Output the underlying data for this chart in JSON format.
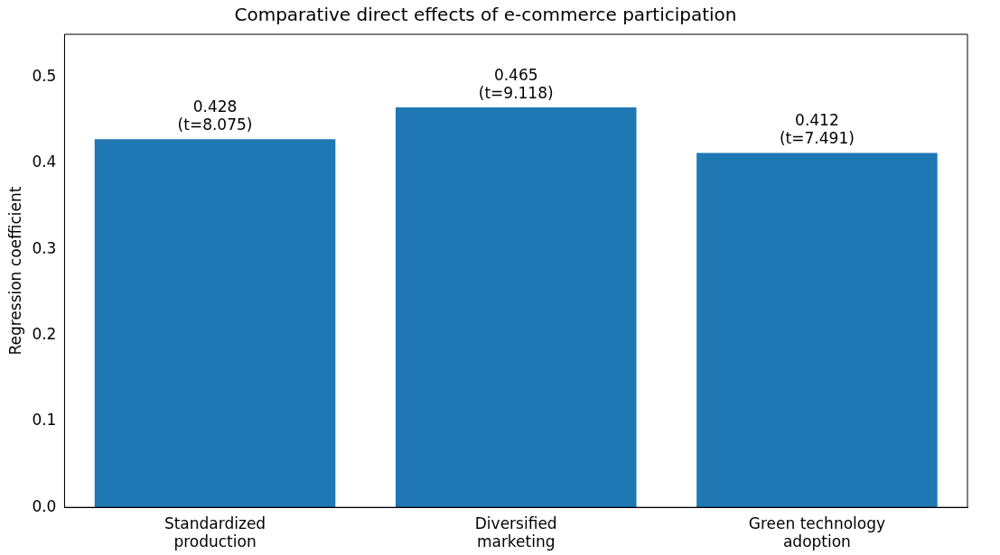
{
  "chart_data": {
    "type": "bar",
    "title": "Comparative direct effects of e-commerce participation",
    "ylabel": "Regression coefficient",
    "categories": [
      "Standardized production",
      "Diversified marketing",
      "Green technology adoption"
    ],
    "values": [
      0.428,
      0.465,
      0.412
    ],
    "color": "#1f77b4",
    "value_labels": [
      "0.428\n(t=8.075)",
      "0.465\n(t=9.118)",
      "0.412\n(t=7.491)"
    ],
    "ylim": [
      0,
      0.55
    ],
    "yticks": [
      {
        "value": 0,
        "label": "0.0"
      },
      0.1,
      0.2,
      0.3,
      0.4,
      0.5
    ],
    "grid": false,
    "legend": false
  }
}
